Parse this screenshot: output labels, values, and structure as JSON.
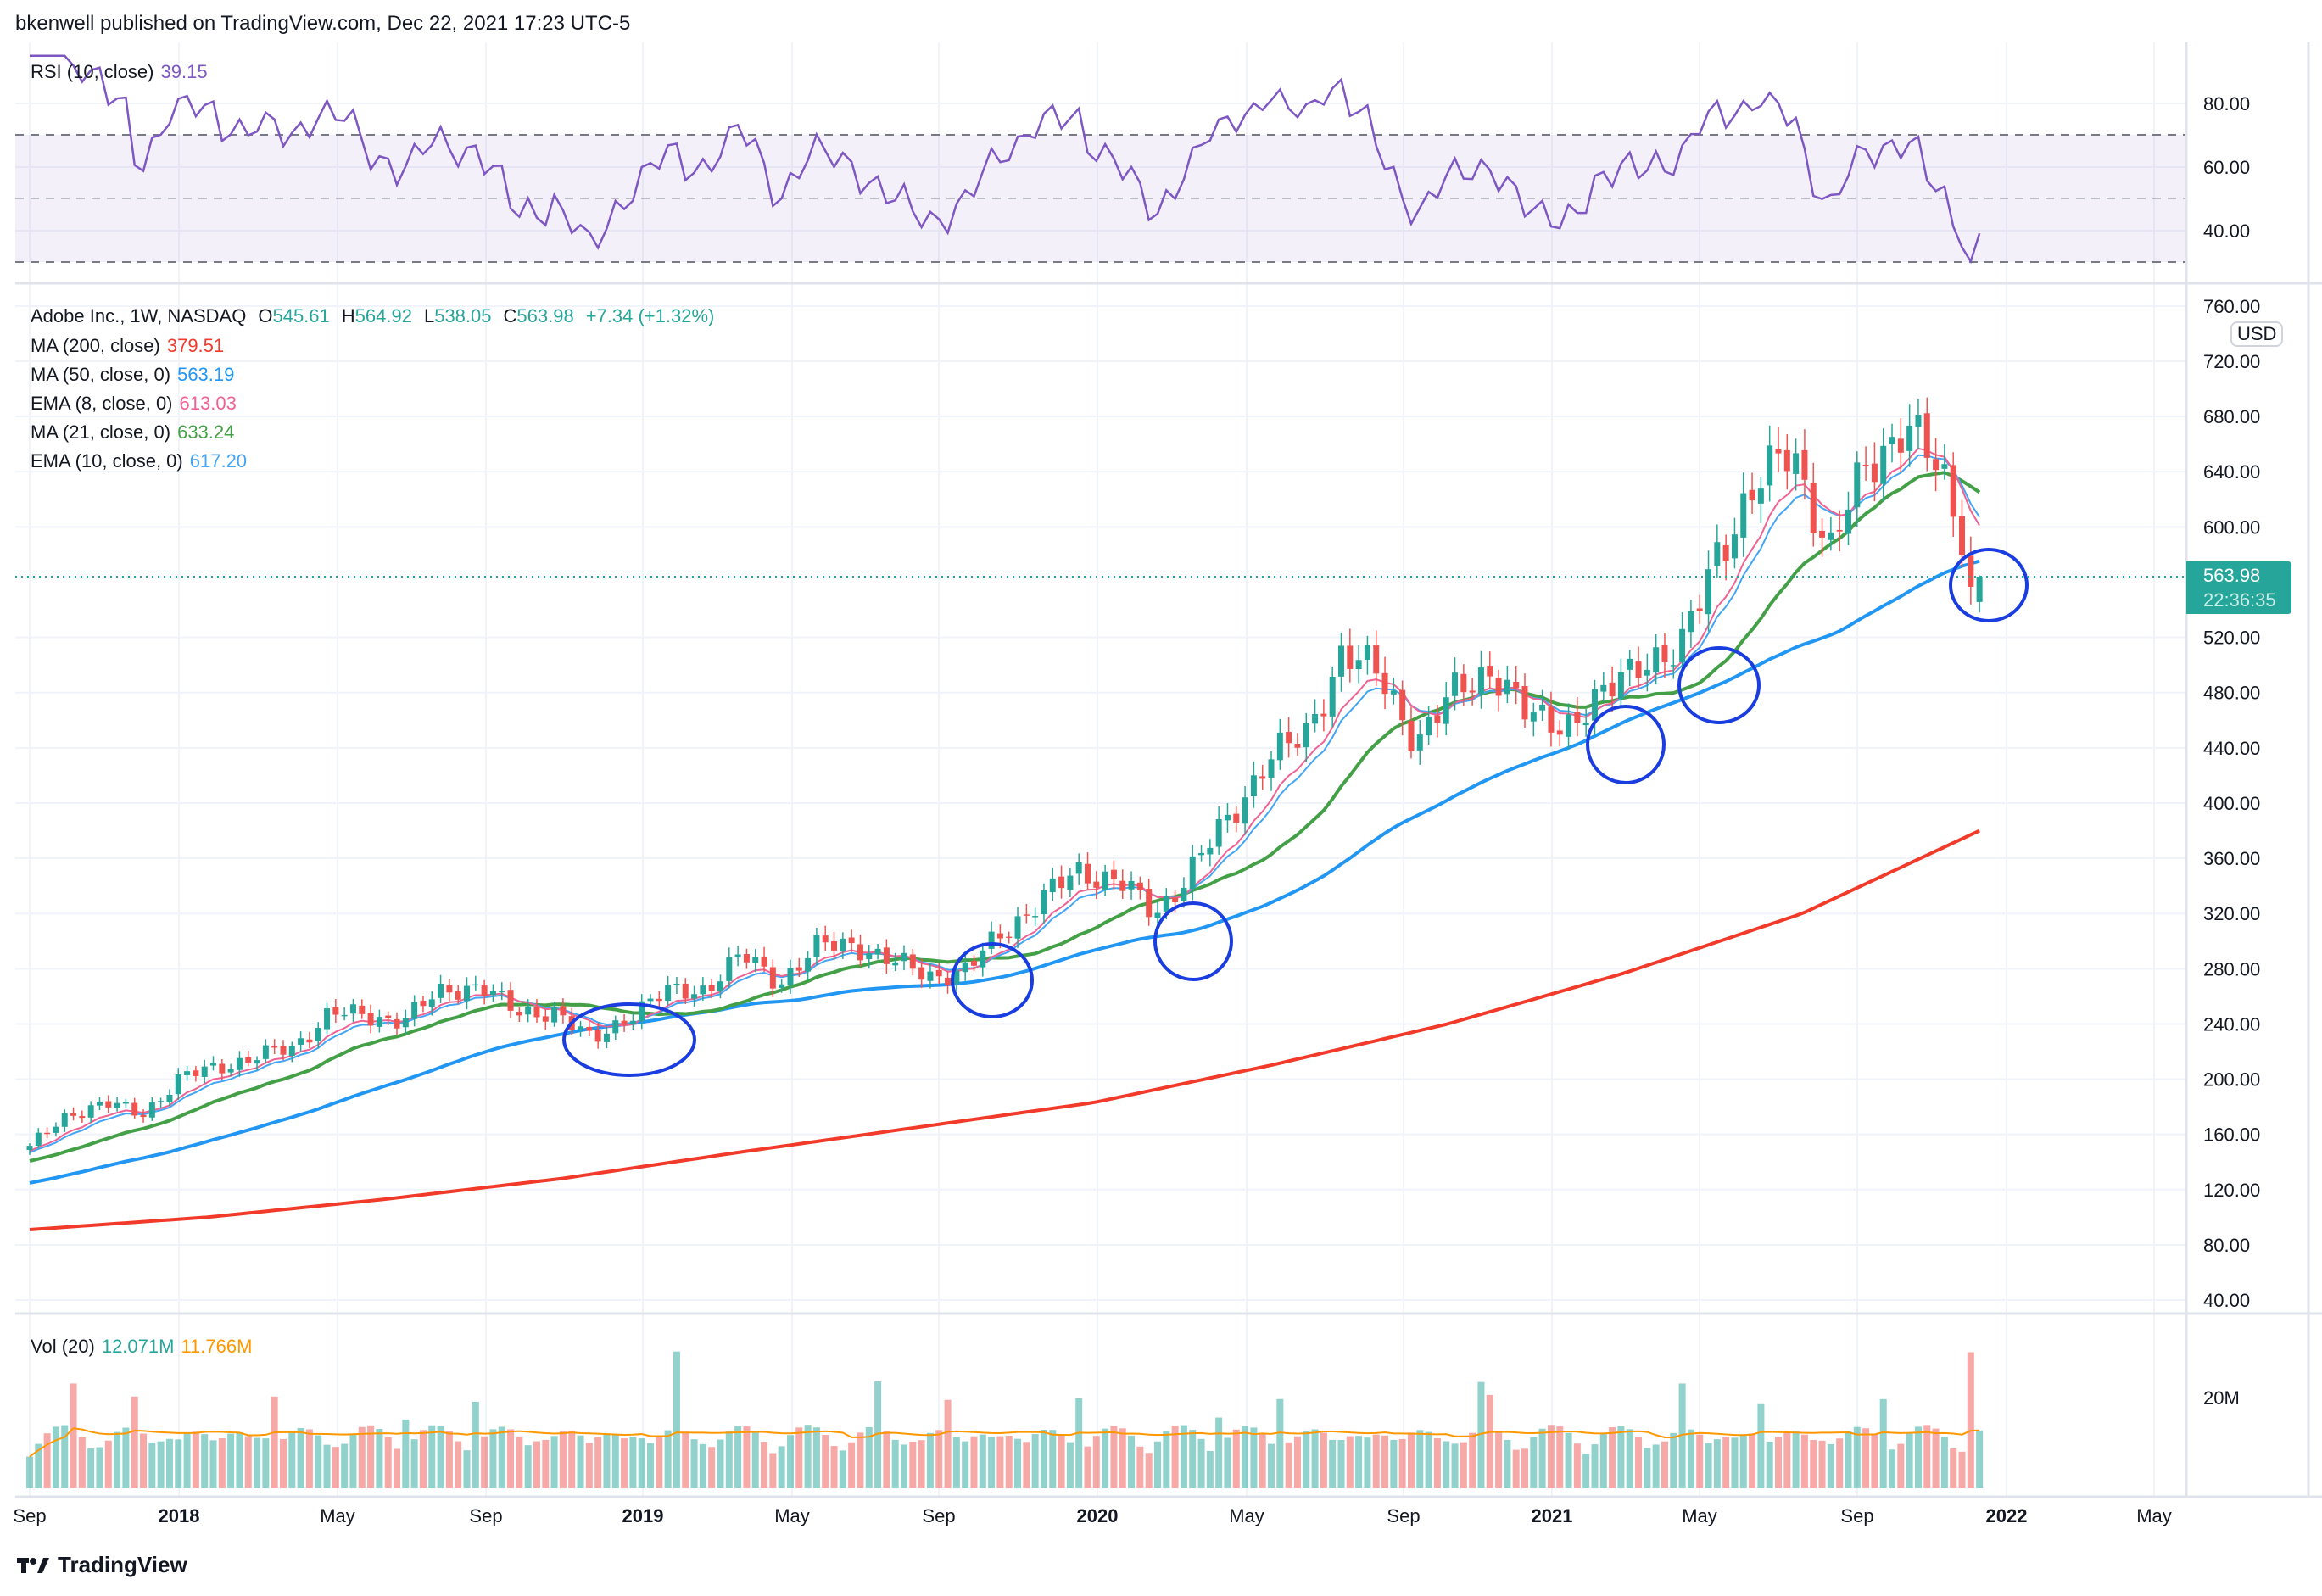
{
  "header": {
    "published": "bkenwell published on TradingView.com, Dec 22, 2021 17:23 UTC-5"
  },
  "rsi_legend": {
    "label": "RSI (10, close)",
    "value": "39.15"
  },
  "main_legend": {
    "symbol": "Adobe Inc., 1W, NASDAQ",
    "o_label": "O",
    "o": "545.61",
    "h_label": "H",
    "h": "564.92",
    "l_label": "L",
    "l": "538.05",
    "c_label": "C",
    "c": "563.98",
    "change": "+7.34 (+1.32%)",
    "indicators": [
      {
        "label": "MA (200, close)",
        "value": "379.51",
        "color": "#f23a2a"
      },
      {
        "label": "MA (50, close, 0)",
        "value": "563.19",
        "color": "#2196f3"
      },
      {
        "label": "EMA (8, close, 0)",
        "value": "613.03",
        "color": "#f06292"
      },
      {
        "label": "MA (21, close, 0)",
        "value": "633.24",
        "color": "#43a047"
      },
      {
        "label": "EMA (10, close, 0)",
        "value": "617.20",
        "color": "#42a5f5"
      }
    ]
  },
  "vol_legend": {
    "label": "Vol (20)",
    "value": "12.071M",
    "ma": "11.766M"
  },
  "price_axis": {
    "currency": "USD",
    "last_price": "563.98",
    "countdown": "22:36:35"
  },
  "footer": {
    "logo_text": "TradingView"
  },
  "chart_data": {
    "type": "candlestick",
    "title": "Adobe Inc., 1W, NASDAQ",
    "y_ticks": [
      "760.00",
      "720.00",
      "680.00",
      "640.00",
      "600.00",
      "520.00",
      "480.00",
      "440.00",
      "400.00",
      "360.00",
      "320.00",
      "280.00",
      "240.00",
      "200.00",
      "160.00",
      "120.00",
      "80.00",
      "40.00"
    ],
    "rsi_ticks": [
      "80.00",
      "60.00",
      "40.00"
    ],
    "vol_ticks": [
      "20M"
    ],
    "x_ticks": [
      "Sep",
      "2018",
      "May",
      "Sep",
      "2019",
      "May",
      "Sep",
      "2020",
      "May",
      "Sep",
      "2021",
      "May",
      "Sep",
      "2022",
      "May"
    ],
    "ylim": [
      40,
      760
    ],
    "weeks": 224,
    "monthly_closes": [
      150,
      175,
      182,
      175,
      200,
      209,
      216,
      222,
      249,
      244,
      245,
      262,
      270,
      246,
      251,
      226,
      248,
      262,
      266,
      289,
      271,
      295,
      299,
      284,
      276,
      278,
      309,
      330,
      351,
      345,
      318,
      354,
      387,
      435,
      444,
      512,
      490,
      447,
      478,
      500,
      459,
      460,
      475,
      508,
      504,
      586,
      622,
      663,
      576,
      650,
      670,
      640,
      564
    ],
    "ma200_keypoints": [
      91,
      100,
      113,
      128,
      147,
      165,
      183,
      210,
      240,
      277,
      320,
      380
    ],
    "last_candle": {
      "open": 545.61,
      "high": 564.92,
      "low": 538.05,
      "close": 563.98,
      "prev_close": 556.64
    },
    "colors": {
      "up": "#26a69a",
      "down": "#ef5350",
      "ma200": "#f23a2a",
      "ma50": "#2196f3",
      "ema8": "#f06292",
      "ma21": "#43a047",
      "ema10": "#42a5f5",
      "rsi": "#7e57c2",
      "vol_ma": "#ff9800",
      "annotation": "#1a3de0"
    }
  }
}
